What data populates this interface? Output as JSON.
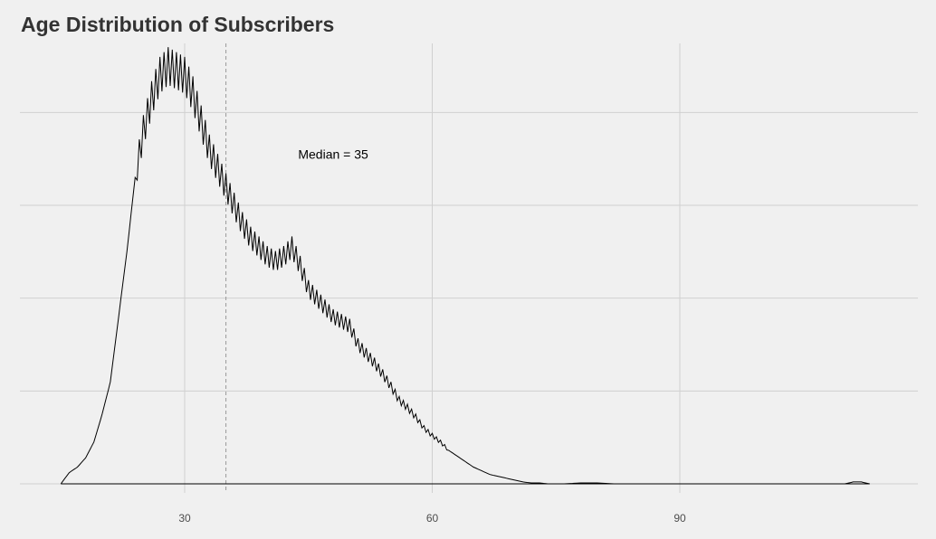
{
  "chart_data": {
    "type": "line",
    "title": "Age Distribution of Subscribers",
    "xlabel": "",
    "ylabel": "",
    "xlim": [
      15,
      115
    ],
    "ylim": [
      0,
      0.045
    ],
    "x_ticks": [
      30,
      60,
      90
    ],
    "y_gridlines": [
      0,
      0.01,
      0.02,
      0.03,
      0.04
    ],
    "y_tick_labels_shown": false,
    "grid": true,
    "median": 35,
    "annotation": {
      "text": "Median = 35",
      "x": 48,
      "y": 0.035
    },
    "colors": {
      "line": "#000000",
      "median_line": "#999999",
      "grid": "#d0d0d0",
      "background": "#f0f0f0"
    },
    "series": [
      {
        "x": [
          15,
          16,
          17,
          18,
          19,
          20,
          21,
          22,
          23,
          24,
          25,
          26,
          27,
          28,
          29,
          30,
          31,
          32,
          33,
          34,
          35,
          36,
          37,
          38,
          39,
          40,
          41,
          42,
          43,
          44,
          45,
          46,
          47,
          48,
          49,
          50,
          51,
          52,
          53,
          54,
          55,
          56,
          57,
          58,
          59,
          60,
          61,
          62,
          63,
          64,
          65,
          66,
          67,
          68,
          69,
          70,
          71,
          72,
          73,
          74,
          75,
          76,
          78,
          80,
          82,
          85,
          90,
          95,
          100,
          105,
          110,
          111,
          112,
          113
        ],
        "values": [
          0.0,
          0.0012,
          0.0018,
          0.0028,
          0.0045,
          0.0075,
          0.011,
          0.018,
          0.025,
          0.033,
          0.038,
          0.0415,
          0.044,
          0.045,
          0.0445,
          0.044,
          0.042,
          0.039,
          0.036,
          0.034,
          0.032,
          0.03,
          0.028,
          0.0265,
          0.0255,
          0.0245,
          0.024,
          0.0245,
          0.0255,
          0.0235,
          0.021,
          0.02,
          0.019,
          0.018,
          0.0175,
          0.017,
          0.015,
          0.014,
          0.013,
          0.0118,
          0.0105,
          0.009,
          0.0082,
          0.0072,
          0.006,
          0.0052,
          0.0045,
          0.0036,
          0.003,
          0.0024,
          0.0018,
          0.0014,
          0.001,
          0.0008,
          0.0006,
          0.0004,
          0.0002,
          0.0001,
          0.0001,
          0.0,
          0.0,
          0.0,
          0.0001,
          0.0001,
          0.0,
          0.0,
          0.0,
          0.0,
          0.0,
          0.0,
          0.0,
          0.0002,
          0.0002,
          0.0
        ]
      }
    ]
  }
}
